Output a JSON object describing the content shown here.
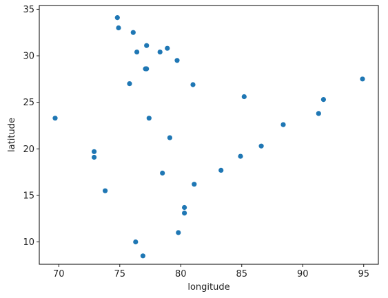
{
  "chart_data": {
    "type": "scatter",
    "title": "",
    "xlabel": "longitude",
    "ylabel": "latitude",
    "xlim": [
      68.4,
      96.2
    ],
    "ylim": [
      7.6,
      35.4
    ],
    "xticks": [
      70,
      75,
      80,
      85,
      90,
      95
    ],
    "yticks": [
      10,
      15,
      20,
      25,
      30,
      35
    ],
    "grid": false,
    "legend": "none",
    "marker_color": "#1f77b4",
    "points": [
      {
        "x": 74.8,
        "y": 34.1
      },
      {
        "x": 74.9,
        "y": 33.0
      },
      {
        "x": 76.1,
        "y": 32.5
      },
      {
        "x": 77.2,
        "y": 31.1
      },
      {
        "x": 78.9,
        "y": 30.8
      },
      {
        "x": 76.4,
        "y": 30.4
      },
      {
        "x": 78.3,
        "y": 30.4
      },
      {
        "x": 79.7,
        "y": 29.5
      },
      {
        "x": 77.1,
        "y": 28.6
      },
      {
        "x": 77.2,
        "y": 28.6
      },
      {
        "x": 94.9,
        "y": 27.5
      },
      {
        "x": 75.8,
        "y": 27.0
      },
      {
        "x": 81.0,
        "y": 26.9
      },
      {
        "x": 85.2,
        "y": 25.6
      },
      {
        "x": 91.7,
        "y": 25.3
      },
      {
        "x": 91.3,
        "y": 23.8
      },
      {
        "x": 69.7,
        "y": 23.3
      },
      {
        "x": 77.4,
        "y": 23.3
      },
      {
        "x": 88.4,
        "y": 22.6
      },
      {
        "x": 79.1,
        "y": 21.2
      },
      {
        "x": 86.6,
        "y": 20.3
      },
      {
        "x": 72.9,
        "y": 19.7
      },
      {
        "x": 84.9,
        "y": 19.2
      },
      {
        "x": 72.9,
        "y": 19.1
      },
      {
        "x": 83.3,
        "y": 17.7
      },
      {
        "x": 78.5,
        "y": 17.4
      },
      {
        "x": 81.1,
        "y": 16.2
      },
      {
        "x": 73.8,
        "y": 15.5
      },
      {
        "x": 80.3,
        "y": 13.7
      },
      {
        "x": 80.3,
        "y": 13.1
      },
      {
        "x": 79.8,
        "y": 11.0
      },
      {
        "x": 76.3,
        "y": 10.0
      },
      {
        "x": 76.9,
        "y": 8.5
      }
    ]
  }
}
